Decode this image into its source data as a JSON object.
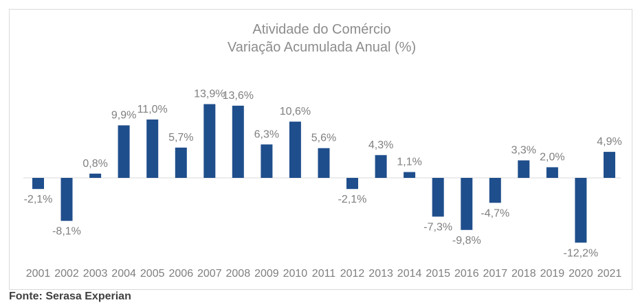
{
  "chart_data": {
    "type": "bar",
    "title": "Atividade do Comércio",
    "subtitle": "Variação Acumulada Anual (%)",
    "categories": [
      "2001",
      "2002",
      "2003",
      "2004",
      "2005",
      "2006",
      "2007",
      "2008",
      "2009",
      "2010",
      "2011",
      "2012",
      "2013",
      "2014",
      "2015",
      "2016",
      "2017",
      "2018",
      "2019",
      "2020",
      "2021"
    ],
    "values": [
      -2.1,
      -8.1,
      0.8,
      9.9,
      11.0,
      5.7,
      13.9,
      13.6,
      6.3,
      10.6,
      5.6,
      -2.1,
      4.3,
      1.1,
      -7.3,
      -9.8,
      -4.7,
      3.3,
      2.0,
      -12.2,
      4.9
    ],
    "labels": [
      "-2,1%",
      "-8,1%",
      "0,8%",
      "9,9%",
      "11,0%",
      "5,7%",
      "13,9%",
      "13,6%",
      "6,3%",
      "10,6%",
      "5,6%",
      "-2,1%",
      "4,3%",
      "1,1%",
      "-7,3%",
      "-9,8%",
      "-4,7%",
      "3,3%",
      "2,0%",
      "-12,2%",
      "4,9%"
    ],
    "xlabel": "",
    "ylabel": "",
    "grid": false,
    "bar_color": "#1f4e8c"
  },
  "source": "Fonte: Serasa Experian"
}
